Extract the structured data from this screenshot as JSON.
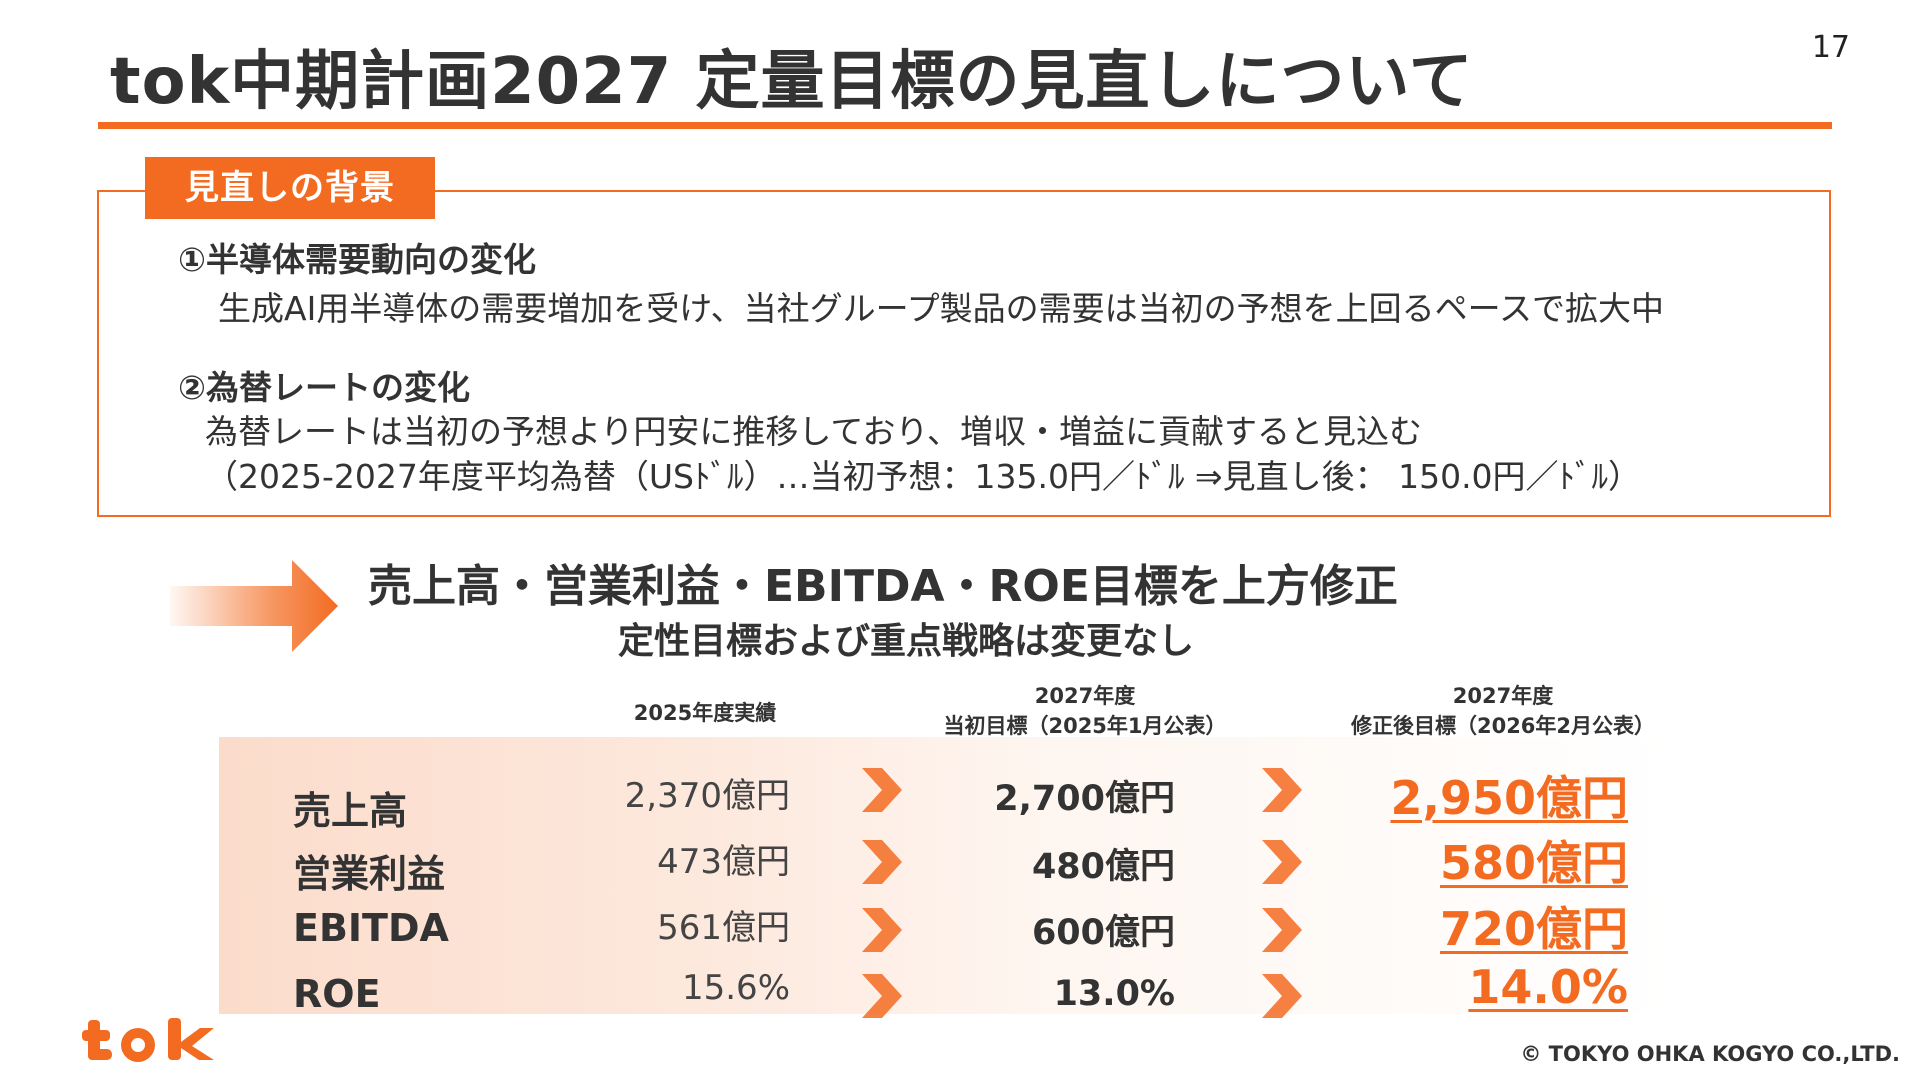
{
  "page": {
    "number": "17",
    "title": "tok中期計画2027 定量目標の見直しについて"
  },
  "background": {
    "tag": "見直しの背景",
    "item1_heading": "①半導体需要動向の変化",
    "item1_text": "生成AI用半導体の需要増加を受け、当社グループ製品の需要は当初の予想を上回るペースで拡大中",
    "item2_heading": "②為替レートの変化",
    "item2_text1": "為替レートは当初の予想より円安に推移しており、増収・増益に貢献すると見込む",
    "item2_text2": "（2025-2027年度平均為替（USﾄﾞﾙ）…当初予想：135.0円／ﾄﾞﾙ ⇒見直し後： 150.0円／ﾄﾞﾙ）"
  },
  "conclusion": {
    "headline": "売上高・営業利益・EBITDA・ROE目標を上方修正",
    "subline": "定性目標および重点戦略は変更なし"
  },
  "table": {
    "col_actual": "2025年度実績",
    "col_initial_line1": "2027年度",
    "col_initial_line2": "当初目標（2025年1月公表）",
    "col_revised_line1": "2027年度",
    "col_revised_line2": "修正後目標（2026年2月公表）",
    "rows": [
      {
        "label": "売上高",
        "actual": "2,370億円",
        "initial": "2,700億円",
        "revised": "2,950億円"
      },
      {
        "label": "営業利益",
        "actual": "473億円",
        "initial": "480億円",
        "revised": "580億円"
      },
      {
        "label": "EBITDA",
        "actual": "561億円",
        "initial": "600億円",
        "revised": "720億円"
      },
      {
        "label": "ROE",
        "actual": "15.6%",
        "initial": "13.0%",
        "revised": "14.0%"
      }
    ]
  },
  "footer": {
    "logo": "tok",
    "copyright": "© TOKYO OHKA KOGYO CO.,LTD."
  },
  "colors": {
    "accent": "#f36b21",
    "text": "#333333"
  }
}
